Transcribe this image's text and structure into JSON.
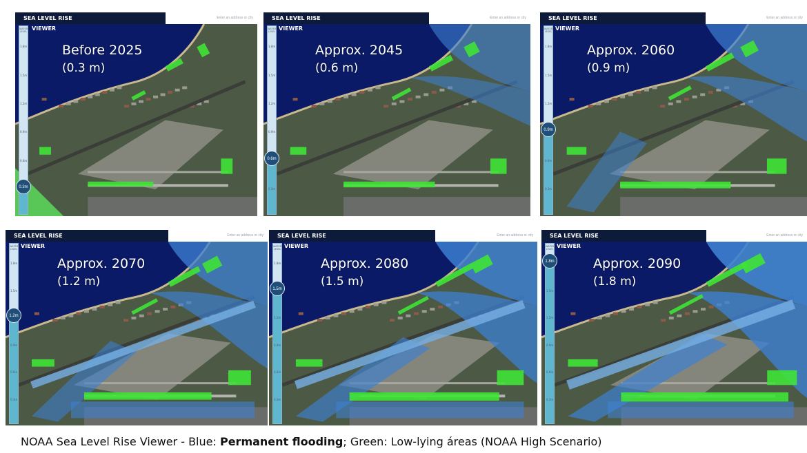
{
  "app": {
    "title": "SEA LEVEL RISE",
    "viewer_label": "VIEWER",
    "search_placeholder": "Enter an address or city",
    "gauge_header": "WATER LEVEL"
  },
  "gauge_ticks": [
    "1.8m",
    "1.5m",
    "1.2m",
    "0.9m",
    "0.6m",
    "0.3m"
  ],
  "panels": [
    {
      "id": "p2025",
      "period": "Before 2025",
      "rise": "(0.3 m)",
      "knob_label": "0.3m",
      "level": 0.3
    },
    {
      "id": "p2045",
      "period": "Approx. 2045",
      "rise": "(0.6 m)",
      "knob_label": "0.6m",
      "level": 0.6
    },
    {
      "id": "p2060",
      "period": "Approx. 2060",
      "rise": "(0.9 m)",
      "knob_label": "0.9m",
      "level": 0.9
    },
    {
      "id": "p2070",
      "period": "Approx. 2070",
      "rise": "(1.2 m)",
      "knob_label": "1.2m",
      "level": 1.2
    },
    {
      "id": "p2080",
      "period": "Approx. 2080",
      "rise": "(1.5 m)",
      "knob_label": "1.5m",
      "level": 1.5
    },
    {
      "id": "p2090",
      "period": "Approx. 2090",
      "rise": "(1.8 m)",
      "knob_label": "1.8m",
      "level": 1.8
    }
  ],
  "caption": {
    "prefix": "NOAA Sea Level Rise Viewer - Blue: ",
    "bold": "Permanent flooding",
    "suffix": "; Green: Low-lying áreas (NOAA High Scenario)"
  },
  "colors": {
    "ocean": "#0b1a66",
    "land": "#4c5a45",
    "permanent_flooding": "#3d80d2",
    "low_lying": "#3fe336",
    "topbar": "#0d1a3a"
  }
}
